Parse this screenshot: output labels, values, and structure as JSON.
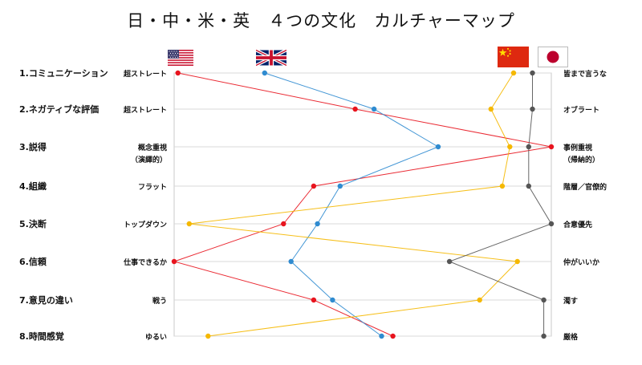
{
  "chart_data": {
    "type": "line",
    "title": "日・中・米・英　４つの文化　カルチャーマップ",
    "categories": [
      "1.コミュニケーション",
      "2.ネガティブな評価",
      "3.説得",
      "4.組織",
      "5.決断",
      "6.信頼",
      "7.意見の違い",
      "8.時間感覚"
    ],
    "left_labels": [
      "超ストレート",
      "超ストレート",
      "概念重視\n（演繹的）",
      "フラット",
      "トップダウン",
      "仕事できるか",
      "戦う",
      "ゆるい"
    ],
    "right_labels": [
      "皆まで言うな",
      "オブラート",
      "事例重視\n（帰納的）",
      "階層／官僚的",
      "合意優先",
      "仲がいいか",
      "濁す",
      "厳格"
    ],
    "xlim": [
      0,
      100
    ],
    "series": [
      {
        "name": "us",
        "color": "#e8141e",
        "values": [
          1,
          48,
          100,
          37,
          29,
          0,
          37,
          58
        ]
      },
      {
        "name": "uk",
        "color": "#2f8bd0",
        "values": [
          24,
          53,
          70,
          44,
          38,
          31,
          42,
          55
        ]
      },
      {
        "name": "cn",
        "color": "#f5b800",
        "values": [
          90,
          84,
          89,
          87,
          4,
          91,
          81,
          9
        ]
      },
      {
        "name": "jp",
        "color": "#555555",
        "values": [
          95,
          95,
          94,
          94,
          100,
          73,
          98,
          98
        ]
      }
    ],
    "flags": [
      "us-flag-icon",
      "uk-flag-icon",
      "cn-flag-icon",
      "jp-flag-icon"
    ]
  }
}
